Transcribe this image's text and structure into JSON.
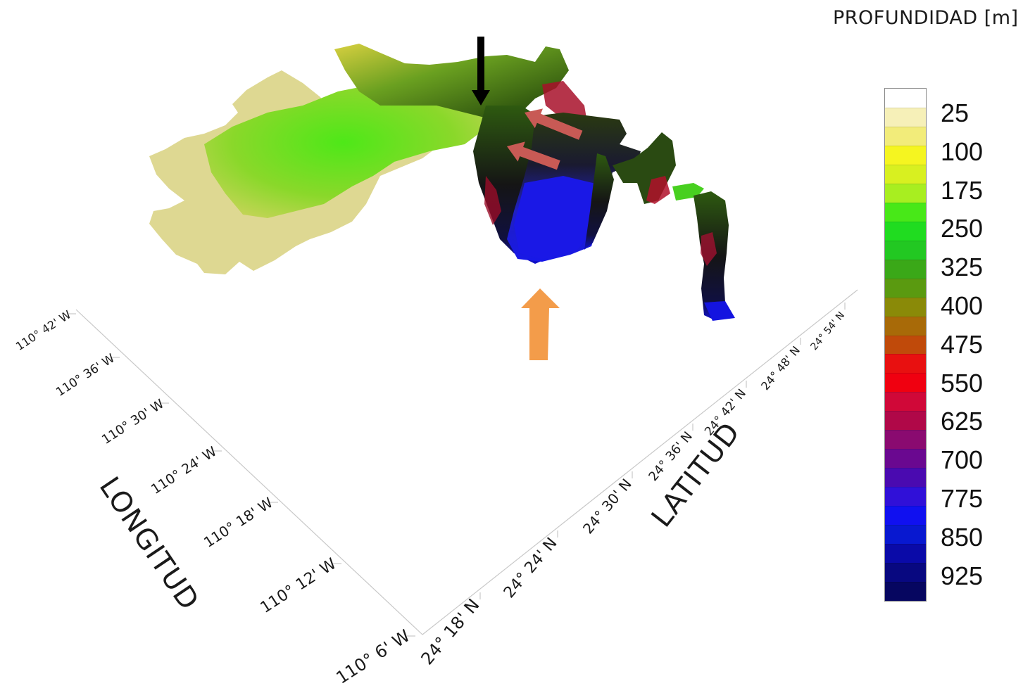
{
  "chart_data": {
    "type": "surface",
    "title": "",
    "legend_title": "PROFUNDIDAD [m]",
    "x_axis": {
      "label": "LONGITUD",
      "ticks": [
        "110° 42' W",
        "110° 36' W",
        "110° 30' W",
        "110° 24' W",
        "110° 18' W",
        "110° 12' W",
        "110° 6' W"
      ]
    },
    "y_axis": {
      "label": "LATITUD",
      "ticks": [
        "24° 18' N",
        "24° 24' N",
        "24° 30' N",
        "24° 36' N",
        "24° 42' N",
        "24° 48' N",
        "24° 54' N"
      ]
    },
    "colorbar": {
      "labels": [
        "25",
        "100",
        "175",
        "250",
        "325",
        "400",
        "475",
        "550",
        "625",
        "700",
        "775",
        "850",
        "925"
      ],
      "range": [
        0,
        1000
      ],
      "colors": [
        "#ffffff",
        "#f6f0b8",
        "#f2ec7a",
        "#f5f520",
        "#d8f020",
        "#a8ee20",
        "#48e818",
        "#20dc20",
        "#22c822",
        "#3aa818",
        "#5a9a10",
        "#8a8a08",
        "#a86a08",
        "#c04a0a",
        "#e81010",
        "#f00010",
        "#d00838",
        "#b00848",
        "#8a0a70",
        "#6a0890",
        "#4a0ab0",
        "#3010d8",
        "#1010f0",
        "#0818d0",
        "#0a0aa8",
        "#080880",
        "#060660"
      ]
    },
    "annotations": [
      {
        "type": "arrow",
        "color": "#000000",
        "direction": "down"
      },
      {
        "type": "arrow",
        "color": "#c85a55",
        "direction": "left"
      },
      {
        "type": "arrow",
        "color": "#c85a55",
        "direction": "left"
      },
      {
        "type": "arrow",
        "color": "#f39c4a",
        "direction": "up"
      }
    ]
  }
}
